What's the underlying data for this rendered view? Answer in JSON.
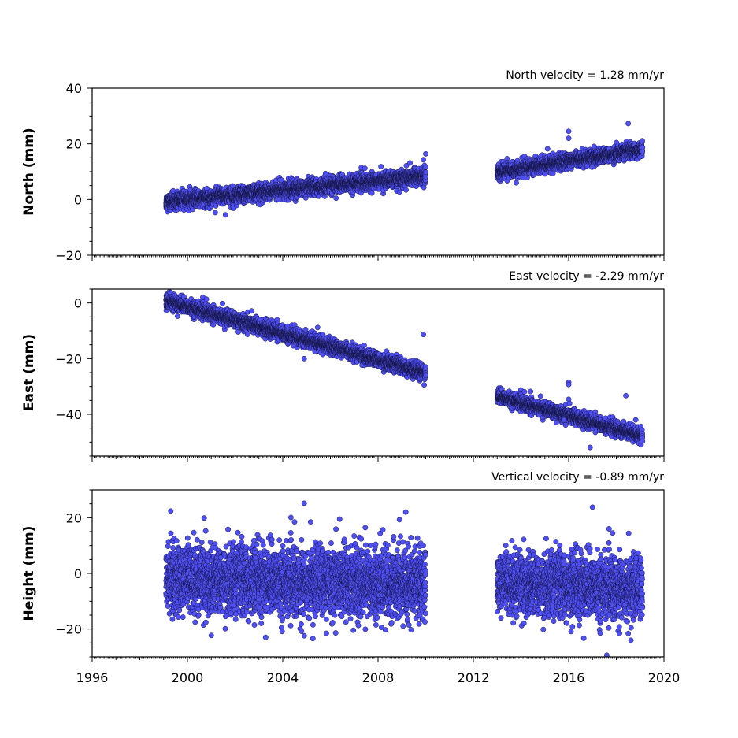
{
  "chart_data": [
    {
      "type": "scatter",
      "title": "North velocity = 1.28 mm/yr",
      "ylabel": "North (mm)",
      "xlim": [
        1996,
        2020
      ],
      "ylim": [
        -20,
        40
      ],
      "yticks": [
        -20,
        0,
        20,
        40
      ],
      "xticks": [
        1996,
        2000,
        2004,
        2008,
        2012,
        2016,
        2020
      ],
      "show_xtick_labels": false,
      "velocity_mm_per_yr": 1.28,
      "point_color": "#4f4ff7",
      "series": [
        {
          "name": "",
          "segments": [
            {
              "x_start": 1999.1,
              "x_end": 2010.0,
              "y_start": -0.8,
              "y_end": 8.4,
              "spread": 1.4
            },
            {
              "x_start": 2013.0,
              "x_end": 2019.1,
              "y_start": 9.8,
              "y_end": 18.0,
              "spread": 1.3
            }
          ],
          "outliers": [
            {
              "x": 2016.0,
              "y": 24.5
            },
            {
              "x": 2016.0,
              "y": 22.0
            },
            {
              "x": 2018.5,
              "y": 27.3
            },
            {
              "x": 2010.0,
              "y": 16.4
            },
            {
              "x": 2009.9,
              "y": 14.3
            },
            {
              "x": 2008.9,
              "y": 2.7
            },
            {
              "x": 2001.6,
              "y": -5.5
            },
            {
              "x": 2005.8,
              "y": 9.3
            },
            {
              "x": 2013.8,
              "y": 6.0
            }
          ]
        }
      ]
    },
    {
      "type": "scatter",
      "title": "East velocity = -2.29 mm/yr",
      "ylabel": "East (mm)",
      "xlim": [
        1996,
        2020
      ],
      "ylim": [
        -55,
        5
      ],
      "yticks": [
        -40,
        -20,
        0
      ],
      "xticks": [
        1996,
        2000,
        2004,
        2008,
        2012,
        2016,
        2020
      ],
      "show_xtick_labels": false,
      "velocity_mm_per_yr": -2.29,
      "point_color": "#4f4ff7",
      "series": [
        {
          "name": "",
          "segments": [
            {
              "x_start": 1999.1,
              "x_end": 2010.0,
              "y_start": 0.8,
              "y_end": -25.2,
              "spread": 1.3
            },
            {
              "x_start": 2013.0,
              "x_end": 2019.1,
              "y_start": -33.5,
              "y_end": -47.8,
              "spread": 1.2
            }
          ],
          "outliers": [
            {
              "x": 2009.9,
              "y": -11.3
            },
            {
              "x": 2016.0,
              "y": -28.5
            },
            {
              "x": 2016.0,
              "y": -29.3
            },
            {
              "x": 2016.0,
              "y": -34.6
            },
            {
              "x": 2018.4,
              "y": -33.3
            },
            {
              "x": 2016.9,
              "y": -51.9
            },
            {
              "x": 2015.8,
              "y": -42.0
            },
            {
              "x": 2004.9,
              "y": -20.0
            },
            {
              "x": 2014.4,
              "y": -31.8
            }
          ]
        }
      ]
    },
    {
      "type": "scatter",
      "title": "Vertical velocity = -0.89 mm/yr",
      "ylabel": "Height (mm)",
      "xlim": [
        1996,
        2020
      ],
      "ylim": [
        -30,
        30
      ],
      "yticks": [
        -20,
        0,
        20
      ],
      "xticks": [
        1996,
        2000,
        2004,
        2008,
        2012,
        2016,
        2020
      ],
      "xtick_labels": [
        "1996",
        "2000",
        "2004",
        "2008",
        "2012",
        "2016",
        "2020"
      ],
      "show_xtick_labels": true,
      "velocity_mm_per_yr": -0.89,
      "point_color": "#4f4ff7",
      "series": [
        {
          "name": "",
          "segments": [
            {
              "x_start": 1999.1,
              "x_end": 2010.0,
              "y_start": -2.0,
              "y_end": -3.8,
              "spread": 6.0
            },
            {
              "x_start": 2013.0,
              "x_end": 2019.1,
              "y_start": -3.5,
              "y_end": -5.5,
              "spread": 5.5
            }
          ],
          "outliers": [
            {
              "x": 2004.9,
              "y": 25.2
            },
            {
              "x": 1999.3,
              "y": 22.4
            },
            {
              "x": 2017.0,
              "y": 23.8
            },
            {
              "x": 2000.7,
              "y": 19.9
            },
            {
              "x": 2008.9,
              "y": 19.3
            },
            {
              "x": 2017.6,
              "y": -29.4
            },
            {
              "x": 2004.9,
              "y": -22.4
            },
            {
              "x": 2001.0,
              "y": -22.3
            },
            {
              "x": 2018.5,
              "y": -21.6
            },
            {
              "x": 2016.1,
              "y": -20.9
            }
          ]
        }
      ]
    }
  ]
}
